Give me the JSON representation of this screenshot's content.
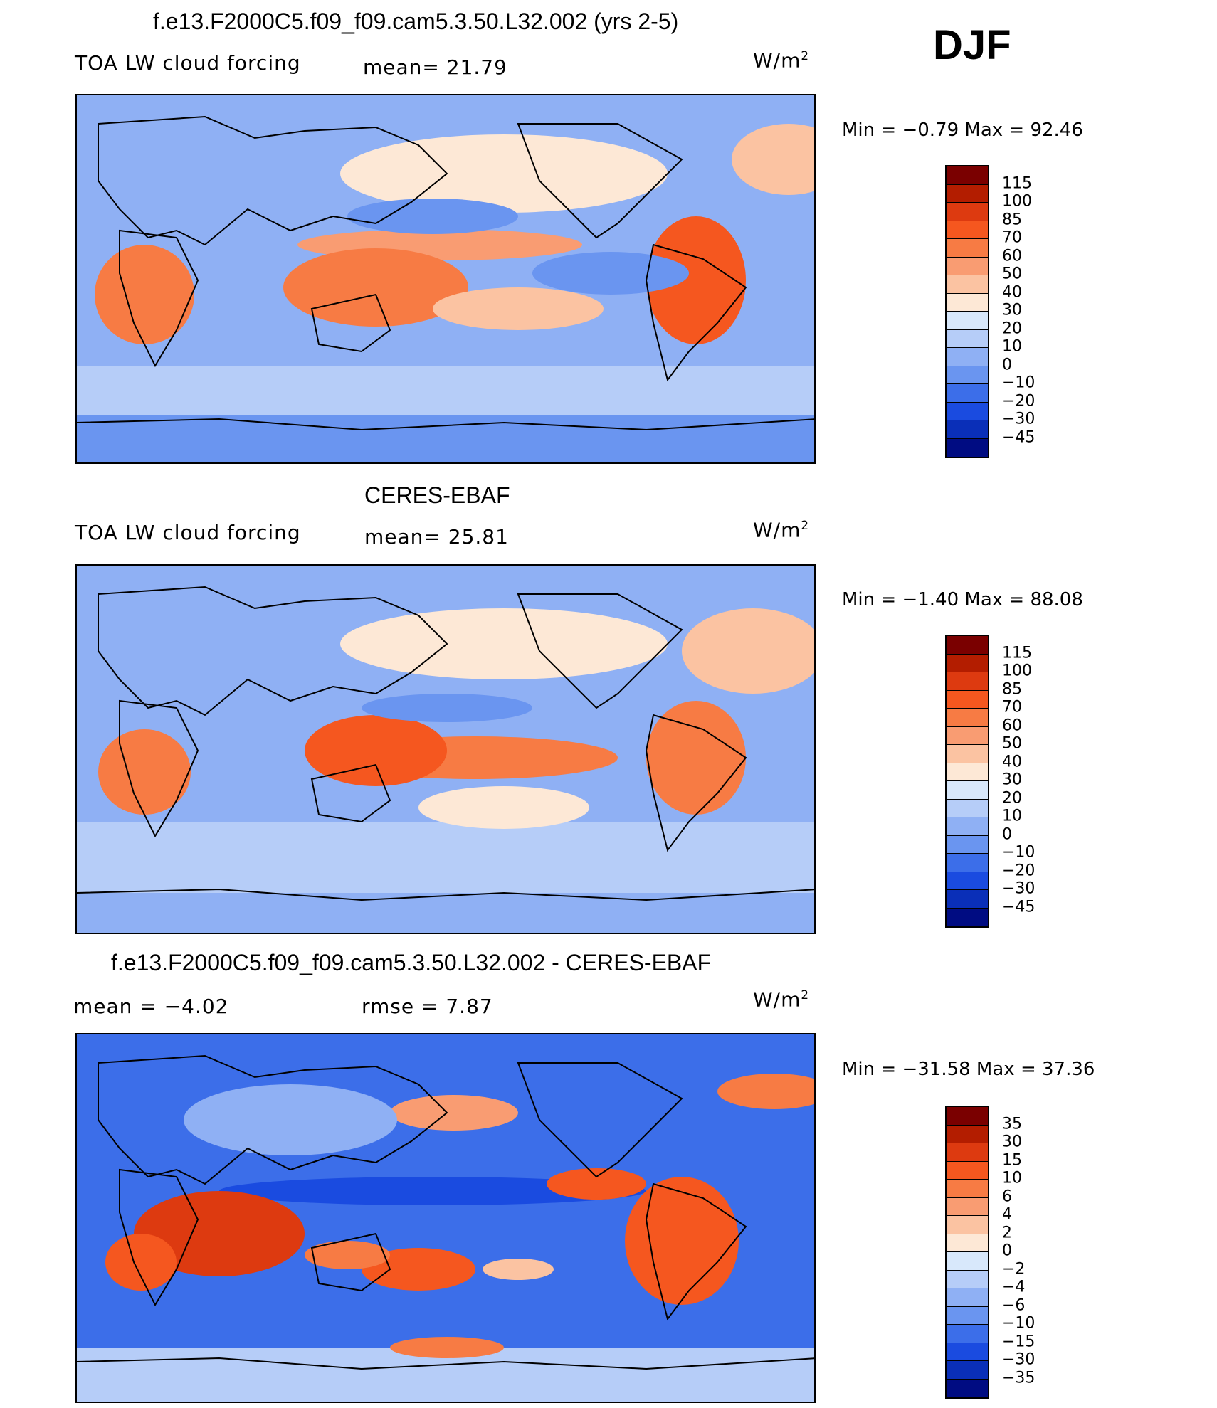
{
  "season": "DJF",
  "panels": [
    {
      "title": "f.e13.F2000C5.f09_f09.cam5.3.50.L32.002 (yrs 2-5)",
      "left_label": "TOA LW cloud forcing",
      "mean_text": "mean=   21.79",
      "units": "W/m",
      "units_sup": "2",
      "minmax": "Min  =   −0.79  Max  =    92.46",
      "colorbar_labels": [
        "115",
        "100",
        "85",
        "70",
        "60",
        "50",
        "40",
        "30",
        "20",
        "10",
        "0",
        "−10",
        "−20",
        "−30",
        "−45"
      ]
    },
    {
      "title": "CERES-EBAF",
      "left_label": "TOA LW cloud forcing",
      "mean_text": "mean=   25.81",
      "units": "W/m",
      "units_sup": "2",
      "minmax": "Min  =   −1.40  Max  =    88.08",
      "colorbar_labels": [
        "115",
        "100",
        "85",
        "70",
        "60",
        "50",
        "40",
        "30",
        "20",
        "10",
        "0",
        "−10",
        "−20",
        "−30",
        "−45"
      ]
    },
    {
      "title": "f.e13.F2000C5.f09_f09.cam5.3.50.L32.002 - CERES-EBAF",
      "left_label": "mean  =    −4.02",
      "mean_text": "rmse  =     7.87",
      "units": "W/m",
      "units_sup": "2",
      "minmax": "Min  = −31.58  Max  =    37.36",
      "colorbar_labels": [
        "35",
        "30",
        "15",
        "10",
        "6",
        "4",
        "2",
        "0",
        "−2",
        "−4",
        "−6",
        "−10",
        "−15",
        "−30",
        "−35"
      ]
    }
  ],
  "colors": {
    "scale": [
      "#7a0000",
      "#b31d00",
      "#dd3a10",
      "#f5571f",
      "#f77b44",
      "#f99c72",
      "#fbc3a2",
      "#fde8d6",
      "#d8e8fb",
      "#b6cdf8",
      "#8fb0f4",
      "#6a95f0",
      "#3c6ee9",
      "#1a4be0",
      "#0a2fb8",
      "#000c82"
    ],
    "map_base": "#7aa3f2",
    "coast": "#000000"
  }
}
